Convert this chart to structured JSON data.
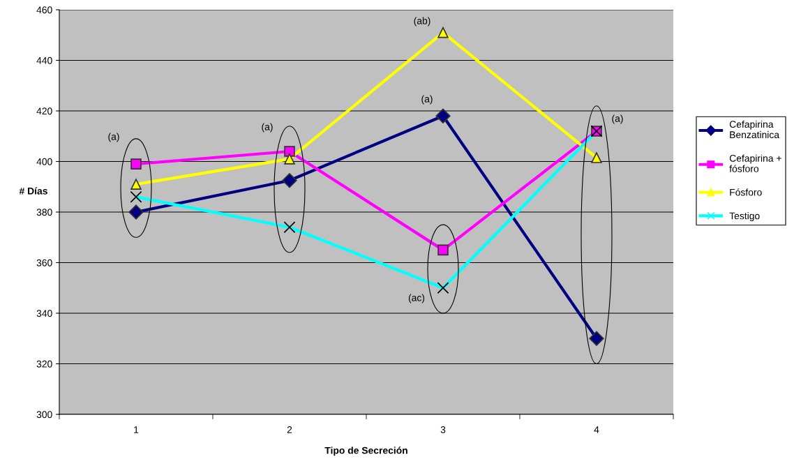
{
  "chart_data": {
    "type": "line",
    "xlabel": "Tipo de Secreción",
    "ylabel": "# Días",
    "categories": [
      "1",
      "2",
      "3",
      "4"
    ],
    "series": [
      {
        "name": "Cefapirina Benzatinica",
        "color": "#000080",
        "marker": "diamond",
        "values": [
          380,
          392.5,
          418,
          330
        ]
      },
      {
        "name": "Cefapirina + fósforo",
        "color": "#ff00ff",
        "marker": "square",
        "values": [
          399,
          404,
          365,
          412
        ]
      },
      {
        "name": "Fósforo",
        "color": "#ffff00",
        "marker": "triangle",
        "values": [
          391,
          401,
          451,
          401.5
        ]
      },
      {
        "name": "Testigo",
        "color": "#00ffff",
        "marker": "cross",
        "values": [
          386,
          374,
          350,
          412
        ]
      }
    ],
    "ylim": [
      300,
      460
    ],
    "yticks": [
      300,
      320,
      340,
      360,
      380,
      400,
      420,
      440,
      460
    ],
    "grid": "y",
    "legend": "right",
    "annotations": [
      "(a)",
      "(a)",
      "(ab)",
      "(a)",
      "(ac)",
      "(a)"
    ]
  }
}
